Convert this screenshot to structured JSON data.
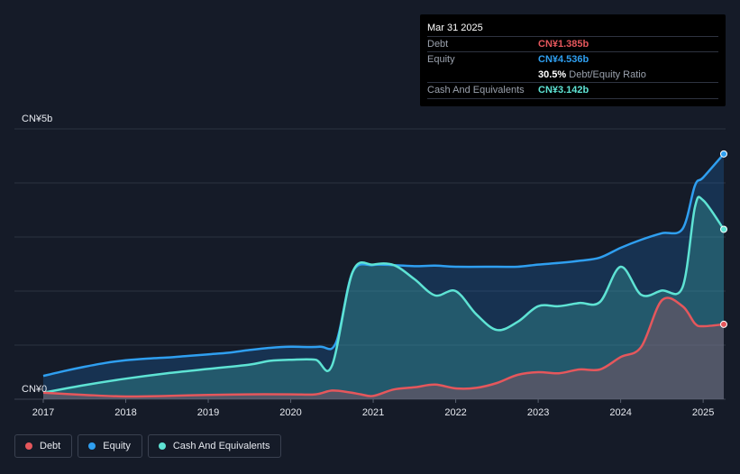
{
  "tooltip": {
    "date": "Mar 31 2025",
    "rows": [
      {
        "label": "Debt",
        "value": "CN¥1.385b",
        "color": "#e5575c"
      },
      {
        "label": "Equity",
        "value": "CN¥4.536b",
        "color": "#2f9ff0"
      },
      {
        "label": "",
        "value": "30.5%",
        "suffix": "Debt/Equity Ratio",
        "color": "#ffffff"
      },
      {
        "label": "Cash And Equivalents",
        "value": "CN¥3.142b",
        "color": "#5ee3d4"
      }
    ]
  },
  "legend": [
    {
      "label": "Debt",
      "color": "#e5575c"
    },
    {
      "label": "Equity",
      "color": "#2f9ff0"
    },
    {
      "label": "Cash And Equivalents",
      "color": "#5ee3d4"
    }
  ],
  "chart_data": {
    "type": "area",
    "x_ticks": [
      "2017",
      "2018",
      "2019",
      "2020",
      "2021",
      "2022",
      "2023",
      "2024",
      "2025"
    ],
    "y_ticks": [
      "CN¥0",
      "CN¥5b"
    ],
    "ylim": [
      0,
      5
    ],
    "xlim": [
      2017,
      2025.25
    ],
    "y_unit": "CN¥ billions",
    "grid": true,
    "legend_position": "bottom-left",
    "series": [
      {
        "name": "Debt",
        "color": "#e5575c",
        "points": [
          [
            2017.0,
            0.12
          ],
          [
            2017.5,
            0.08
          ],
          [
            2018.0,
            0.05
          ],
          [
            2018.5,
            0.06
          ],
          [
            2019.0,
            0.08
          ],
          [
            2019.5,
            0.09
          ],
          [
            2020.0,
            0.09
          ],
          [
            2020.3,
            0.09
          ],
          [
            2020.5,
            0.16
          ],
          [
            2020.7,
            0.13
          ],
          [
            2020.85,
            0.09
          ],
          [
            2021.0,
            0.06
          ],
          [
            2021.25,
            0.18
          ],
          [
            2021.5,
            0.22
          ],
          [
            2021.75,
            0.27
          ],
          [
            2022.0,
            0.2
          ],
          [
            2022.25,
            0.21
          ],
          [
            2022.5,
            0.3
          ],
          [
            2022.75,
            0.45
          ],
          [
            2023.0,
            0.5
          ],
          [
            2023.25,
            0.48
          ],
          [
            2023.5,
            0.55
          ],
          [
            2023.75,
            0.55
          ],
          [
            2024.0,
            0.78
          ],
          [
            2024.25,
            0.97
          ],
          [
            2024.5,
            1.83
          ],
          [
            2024.75,
            1.72
          ],
          [
            2024.9,
            1.4
          ],
          [
            2025.0,
            1.35
          ],
          [
            2025.25,
            1.385
          ]
        ]
      },
      {
        "name": "Equity",
        "color": "#2f9ff0",
        "points": [
          [
            2017.0,
            0.43
          ],
          [
            2017.25,
            0.52
          ],
          [
            2017.5,
            0.6
          ],
          [
            2017.75,
            0.67
          ],
          [
            2018.0,
            0.72
          ],
          [
            2018.25,
            0.75
          ],
          [
            2018.5,
            0.77
          ],
          [
            2018.75,
            0.8
          ],
          [
            2019.0,
            0.83
          ],
          [
            2019.25,
            0.86
          ],
          [
            2019.5,
            0.91
          ],
          [
            2019.75,
            0.95
          ],
          [
            2020.0,
            0.97
          ],
          [
            2020.35,
            0.97
          ],
          [
            2020.55,
            1.05
          ],
          [
            2020.75,
            2.35
          ],
          [
            2021.0,
            2.48
          ],
          [
            2021.25,
            2.48
          ],
          [
            2021.5,
            2.46
          ],
          [
            2021.75,
            2.47
          ],
          [
            2022.0,
            2.45
          ],
          [
            2022.5,
            2.45
          ],
          [
            2022.75,
            2.45
          ],
          [
            2023.0,
            2.49
          ],
          [
            2023.25,
            2.52
          ],
          [
            2023.5,
            2.56
          ],
          [
            2023.75,
            2.62
          ],
          [
            2024.0,
            2.8
          ],
          [
            2024.25,
            2.95
          ],
          [
            2024.5,
            3.07
          ],
          [
            2024.75,
            3.15
          ],
          [
            2024.9,
            3.95
          ],
          [
            2025.0,
            4.1
          ],
          [
            2025.25,
            4.536
          ]
        ]
      },
      {
        "name": "Cash And Equivalents",
        "color": "#5ee3d4",
        "points": [
          [
            2017.0,
            0.12
          ],
          [
            2017.5,
            0.26
          ],
          [
            2018.0,
            0.38
          ],
          [
            2018.5,
            0.48
          ],
          [
            2019.0,
            0.56
          ],
          [
            2019.5,
            0.64
          ],
          [
            2019.75,
            0.71
          ],
          [
            2020.0,
            0.73
          ],
          [
            2020.3,
            0.73
          ],
          [
            2020.5,
            0.62
          ],
          [
            2020.75,
            2.35
          ],
          [
            2021.0,
            2.49
          ],
          [
            2021.25,
            2.48
          ],
          [
            2021.5,
            2.22
          ],
          [
            2021.75,
            1.92
          ],
          [
            2022.0,
            2.0
          ],
          [
            2022.25,
            1.57
          ],
          [
            2022.5,
            1.28
          ],
          [
            2022.75,
            1.43
          ],
          [
            2023.0,
            1.72
          ],
          [
            2023.25,
            1.72
          ],
          [
            2023.5,
            1.78
          ],
          [
            2023.75,
            1.8
          ],
          [
            2024.0,
            2.45
          ],
          [
            2024.25,
            1.93
          ],
          [
            2024.5,
            2.01
          ],
          [
            2024.75,
            2.07
          ],
          [
            2024.9,
            3.55
          ],
          [
            2025.0,
            3.68
          ],
          [
            2025.25,
            3.142
          ]
        ]
      }
    ]
  }
}
